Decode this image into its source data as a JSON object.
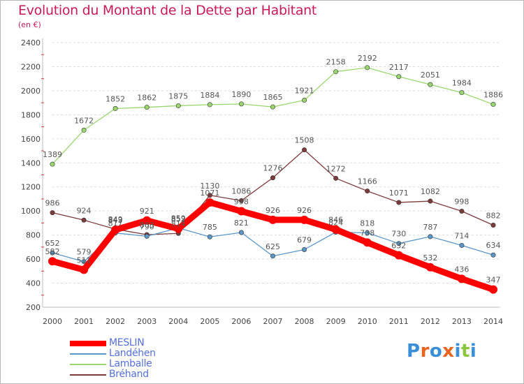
{
  "header": {
    "title": "Evolution du Montant de la Dette par Habitant",
    "subtitle": "(en €)"
  },
  "brand": {
    "letters": [
      "P",
      "r",
      "o",
      "x",
      "i",
      "t",
      "i"
    ],
    "colors": [
      "#3a8fd8",
      "#e8641e",
      "#3a8fd8",
      "#e8641e",
      "#3a8fd8",
      "#8cc63f",
      "#3a8fd8"
    ]
  },
  "chart_data": {
    "type": "line",
    "title": "Evolution du Montant de la Dette par Habitant",
    "subtitle": "(en €)",
    "xlabel": "",
    "ylabel": "",
    "x": [
      "2000",
      "2001",
      "2002",
      "2003",
      "2004",
      "2005",
      "2006",
      "2007",
      "2008",
      "2009",
      "2010",
      "2011",
      "2012",
      "2013",
      "2014"
    ],
    "ylim": [
      200,
      2400
    ],
    "yticks": [
      200,
      400,
      600,
      800,
      1000,
      1200,
      1400,
      1600,
      1800,
      2000,
      2200,
      2400
    ],
    "grid": "horizontal dashed",
    "legend_position": "bottom-left",
    "series": [
      {
        "name": "MESLIN",
        "color": "#ff0000",
        "values": [
          582,
          511,
          843,
          921,
          852,
          1071,
          998,
          926,
          926,
          846,
          738,
          632,
          532,
          436,
          347
        ],
        "labels": [
          "582",
          "511",
          "843",
          "921",
          "852",
          "1071",
          "998",
          "926",
          "926",
          "846",
          "738",
          "632",
          "532",
          "436",
          "347"
        ]
      },
      {
        "name": "Landéhen",
        "color": "#5b97c8",
        "values": [
          652,
          579,
          817,
          790,
          859,
          785,
          821,
          625,
          679,
          824,
          818,
          730,
          787,
          714,
          634
        ],
        "labels": [
          "652",
          "579",
          "817",
          "790",
          "859",
          "785",
          "821",
          "625",
          "679",
          "824",
          "818",
          "730",
          "787",
          "714",
          "634"
        ]
      },
      {
        "name": "Lamballe",
        "color": "#9ad66e",
        "values": [
          1389,
          1672,
          1852,
          1862,
          1875,
          1884,
          1890,
          1865,
          1921,
          2158,
          2192,
          2117,
          2051,
          1984,
          1886
        ],
        "labels": [
          "1389",
          "1672",
          "1852",
          "1862",
          "1875",
          "1884",
          "1890",
          "1865",
          "1921",
          "2158",
          "2192",
          "2117",
          "2051",
          "1984",
          "1886"
        ]
      },
      {
        "name": "Bréhand",
        "color": "#7d3a3a",
        "values": [
          986,
          924,
          849,
          803,
          814,
          1130,
          1086,
          1276,
          1508,
          1272,
          1166,
          1071,
          1082,
          998,
          882
        ],
        "labels": [
          "986",
          "924",
          "849",
          "803",
          "814",
          "1130",
          "1086",
          "1276",
          "1508",
          "1272",
          "1166",
          "1071",
          "1082",
          "998",
          "882"
        ]
      }
    ]
  }
}
